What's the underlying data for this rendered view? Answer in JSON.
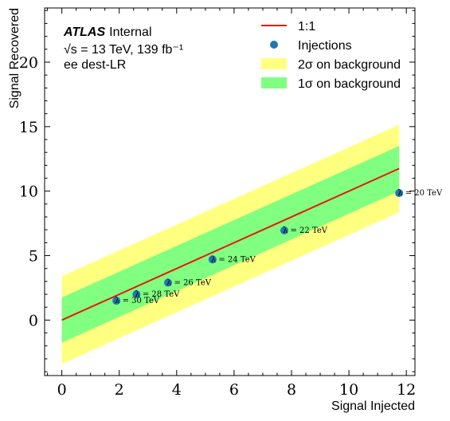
{
  "chart_data": {
    "type": "line",
    "xlabel": "Signal Injected",
    "ylabel": "Signal Recovered",
    "xlim": [
      -0.6,
      12.3
    ],
    "ylim": [
      -4.3,
      24.2
    ],
    "xticks": [
      "0",
      "2",
      "4",
      "6",
      "8",
      "10",
      "12"
    ],
    "yticks": [
      "0",
      "5",
      "10",
      "15",
      "20"
    ],
    "atlas": {
      "brand": "ATLAS",
      "status": "Internal",
      "energy_line": "√s = 13 TeV, 139 fb⁻¹",
      "channel": "ee dest-LR"
    },
    "legend": {
      "position": "top-right",
      "entries": [
        {
          "label": "1:1",
          "kind": "line",
          "color": "#e8180f"
        },
        {
          "label": "Injections",
          "kind": "marker",
          "color": "#1f77b4"
        },
        {
          "label": "2σ on background",
          "kind": "band",
          "color": "#ffff80"
        },
        {
          "label": "1σ on background",
          "kind": "band",
          "color": "#80ff80"
        }
      ]
    },
    "series": [
      {
        "name": "1:1",
        "x": [
          0,
          11.75
        ],
        "y": [
          0,
          11.75
        ]
      },
      {
        "name": "Injections",
        "x": [
          1.9,
          2.6,
          3.7,
          5.25,
          7.75,
          11.75
        ],
        "y": [
          1.5,
          2.0,
          2.9,
          4.7,
          6.95,
          9.85
        ],
        "labels": [
          "λ = 30 TeV",
          "λ = 28 TeV",
          "λ = 26 TeV",
          "λ = 24 TeV",
          "λ = 22 TeV",
          "λ = 20 TeV"
        ]
      },
      {
        "name": "2σ on background",
        "x": [
          0,
          11.75
        ],
        "y_low": [
          -3.4,
          8.35
        ],
        "y_high": [
          3.4,
          15.15
        ]
      },
      {
        "name": "1σ on background",
        "x": [
          0,
          11.75
        ],
        "y_low": [
          -1.75,
          10.0
        ],
        "y_high": [
          1.75,
          13.5
        ]
      }
    ],
    "colors": {
      "line": "#e8180f",
      "marker": "#1f77b4",
      "band_2sigma": "#ffff80",
      "band_1sigma": "#80ff80"
    }
  }
}
